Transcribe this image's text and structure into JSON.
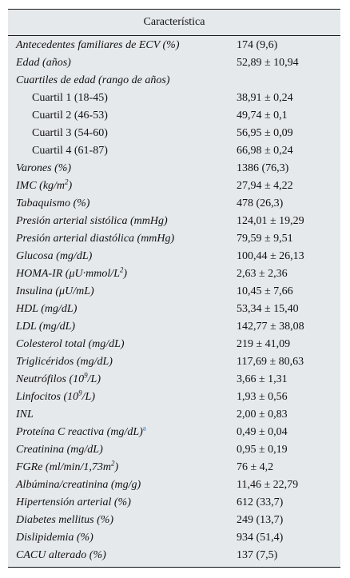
{
  "header": {
    "title": "Característica"
  },
  "rows": [
    {
      "label": "Antecedentes familiares de ECV (%)",
      "value": "174 (9,6)"
    },
    {
      "label": "Edad (años)",
      "value": "52,89 ± 10,94"
    },
    {
      "label": "Cuartiles de edad (rango de años)",
      "value": ""
    },
    {
      "label": "Cuartil 1 (18-45)",
      "value": "38,91 ± 0,24"
    },
    {
      "label": "Cuartil 2 (46-53)",
      "value": "49,74 ± 0,1"
    },
    {
      "label": "Cuartil 3 (54-60)",
      "value": "56,95 ± 0,09"
    },
    {
      "label": "Cuartil 4 (61-87)",
      "value": "66,98 ± 0,24"
    },
    {
      "label": "Varones (%)",
      "value": "1386 (76,3)"
    },
    {
      "label_pre": "IMC (kg/m",
      "label_sup": "2",
      "label_post": ")",
      "value": "27,94 ± 4,22"
    },
    {
      "label": "Tabaquismo (%)",
      "value": "478 (26,3)"
    },
    {
      "label": "Presión arterial sistólica (mmHg)",
      "value": "124,01 ± 19,29"
    },
    {
      "label": "Presión arterial diastólica (mmHg)",
      "value": "79,59 ± 9,51"
    },
    {
      "label": "Glucosa (mg/dL)",
      "value": "100,44 ± 26,13"
    },
    {
      "label_pre": "HOMA-IR (μU·mmol/L",
      "label_sup": "2",
      "label_post": ")",
      "value": "2,63 ± 2,36"
    },
    {
      "label": "Insulina (μU/mL)",
      "value": "10,45 ± 7,66"
    },
    {
      "label": "HDL (mg/dL)",
      "value": "53,34 ± 15,40"
    },
    {
      "label": "LDL (mg/dL)",
      "value": "142,77 ± 38,08"
    },
    {
      "label": "Colesterol total (mg/dL)",
      "value": "219 ± 41,09"
    },
    {
      "label": "Triglicéridos (mg/dL)",
      "value": "117,69 ± 80,63"
    },
    {
      "label_pre": "Neutrófilos (10",
      "label_sup": "9",
      "label_post": "/L)",
      "value": "3,66 ± 1,31"
    },
    {
      "label_pre": "Linfocitos (10",
      "label_sup": "9",
      "label_post": "/L)",
      "value": "1,93 ± 0,56"
    },
    {
      "label": "INL",
      "value": "2,00 ± 0,83"
    },
    {
      "label_pre": "Proteína C reactiva (mg/dL)",
      "label_sup": "a",
      "label_post": "",
      "value": "0,49 ± 0,04"
    },
    {
      "label": "Creatinina (mg/dL)",
      "value": "0,95 ± 0,19"
    },
    {
      "label_pre": "FGRe (ml/min/1,73m",
      "label_sup": "2",
      "label_post": ")",
      "value": "76 ± 4,2"
    },
    {
      "label": "Albúmina/creatinina (mg/g)",
      "value": "11,46 ± 22,79"
    },
    {
      "label": "Hipertensión arterial (%)",
      "value": "612 (33,7)"
    },
    {
      "label": "Diabetes mellitus (%)",
      "value": "249 (13,7)"
    },
    {
      "label": "Dislipidemia (%)",
      "value": "934 (51,4)"
    },
    {
      "label": "CACU alterado (%)",
      "value": "137 (7,5)"
    }
  ]
}
